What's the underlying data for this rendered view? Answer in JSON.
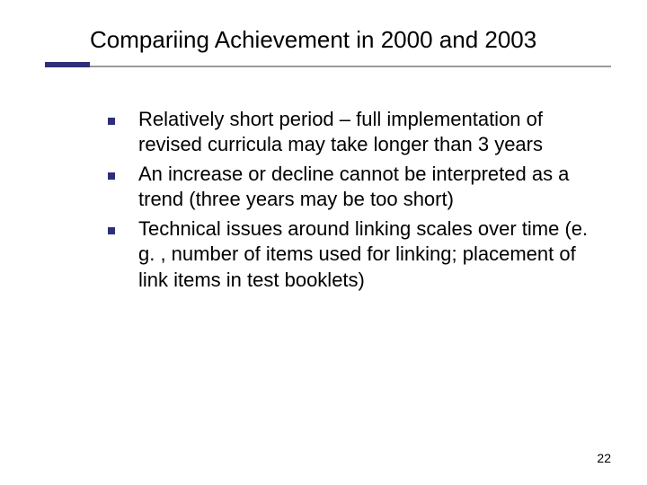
{
  "slide": {
    "title": "Compariing Achievement in 2000 and 2003",
    "title_fontsize": 26,
    "title_color": "#000000",
    "underline_long_color": "#9a9a9a",
    "underline_short_color": "#2e2e7a",
    "bullets": [
      "Relatively short period – full implementation of revised curricula may take longer than 3 years",
      "An increase or decline cannot be interpreted as a trend (three years may be too short)",
      "Technical issues around linking scales over time (e. g. , number of items used for linking; placement of link items in test booklets)"
    ],
    "bullet_marker_color": "#2e2e7a",
    "bullet_text_fontsize": 22,
    "bullet_text_color": "#000000",
    "page_number": "22",
    "page_number_fontsize": 14,
    "background_color": "#ffffff"
  }
}
